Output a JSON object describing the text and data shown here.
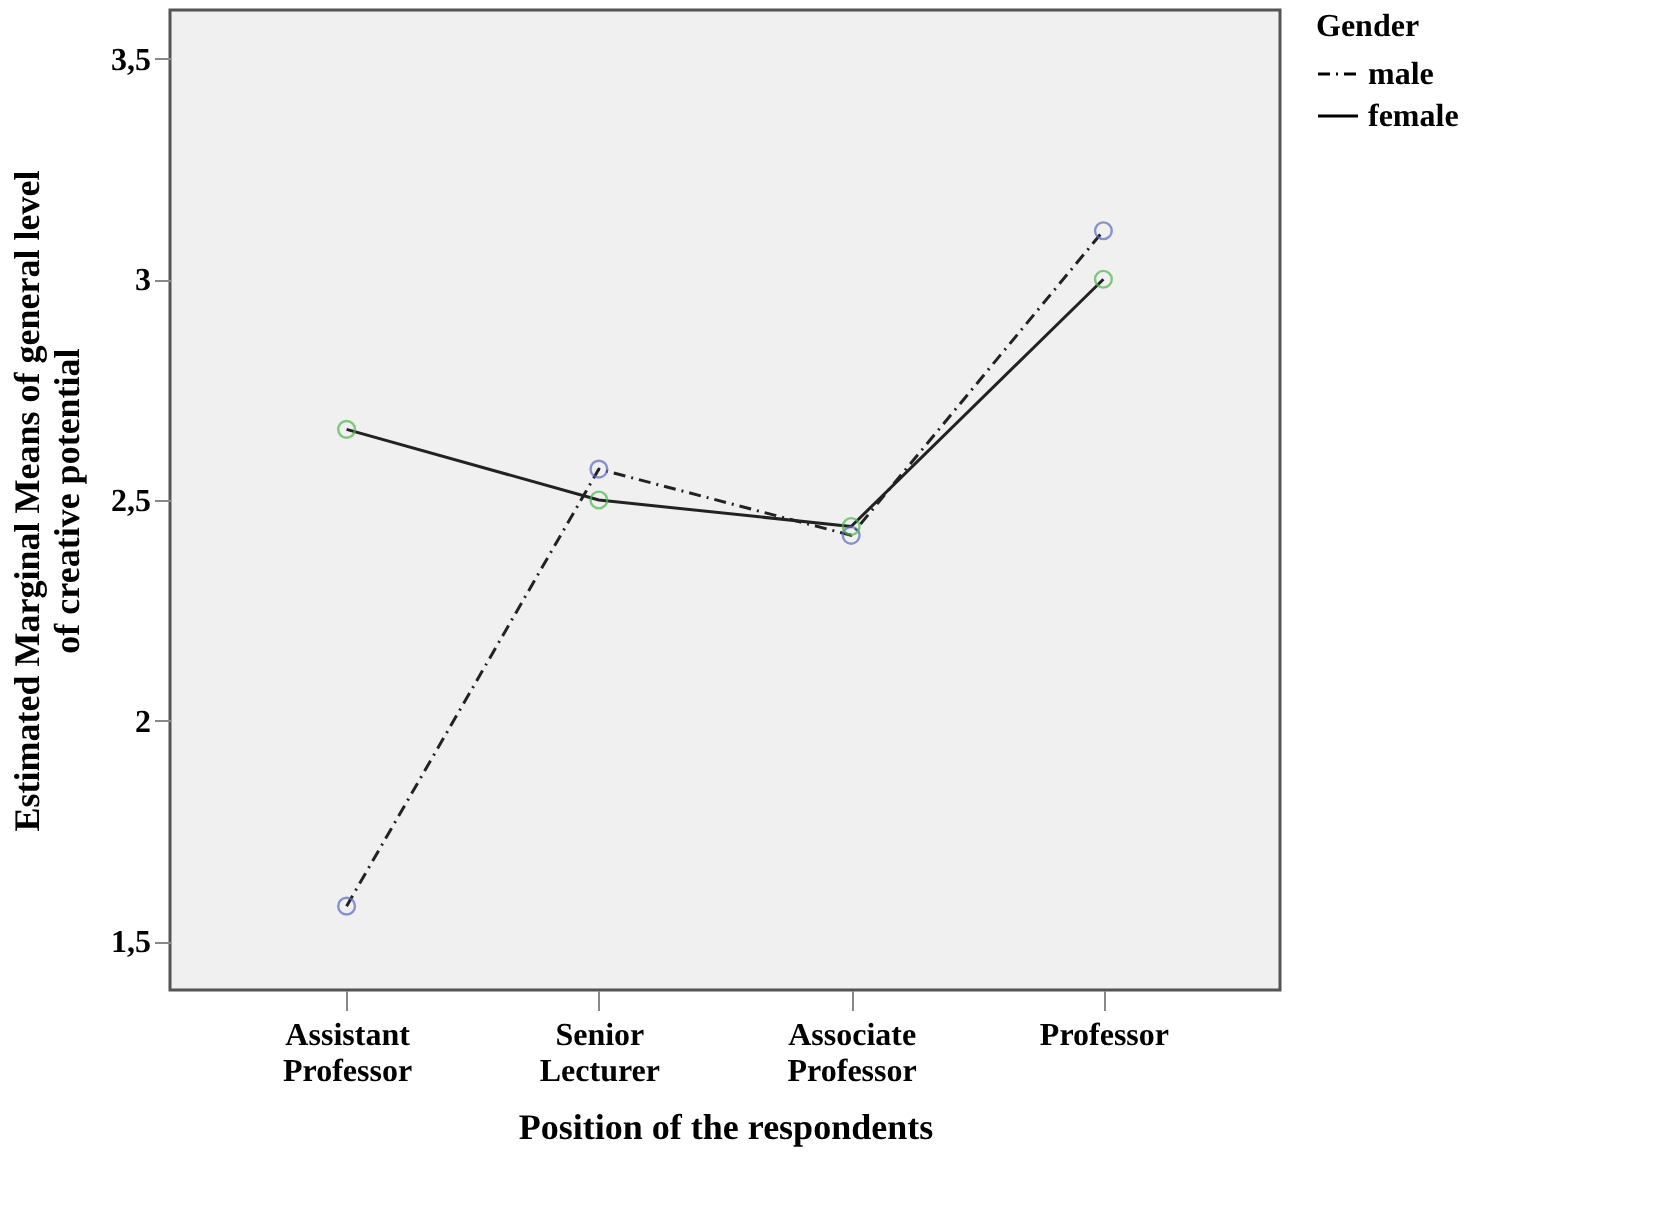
{
  "chart_data": {
    "type": "line",
    "xlabel": "Position of the respondents",
    "ylabel": "Estimated Marginal Means of general level of creative potential",
    "legend_title": "Gender",
    "legend": "top right",
    "marker": "circle",
    "grid": false,
    "categories": [
      "Assistant Professor",
      "Senior Lecturer",
      "Associate Professor",
      "Professor"
    ],
    "ylim": [
      1.39,
      3.61
    ],
    "yticks": [
      {
        "value": 1.5,
        "label": "1,5"
      },
      2,
      {
        "value": 2.5,
        "label": "2,5"
      },
      3,
      {
        "value": 3.5,
        "label": "3,5"
      }
    ],
    "series": [
      {
        "name": "male",
        "color": "#5b6bbf",
        "line_style": "dashed",
        "values": [
          1.58,
          2.57,
          2.42,
          3.11
        ]
      },
      {
        "name": "female",
        "color": "#4cb84c",
        "line_style": "solid",
        "values": [
          2.66,
          2.5,
          2.44,
          3.0
        ]
      }
    ]
  }
}
